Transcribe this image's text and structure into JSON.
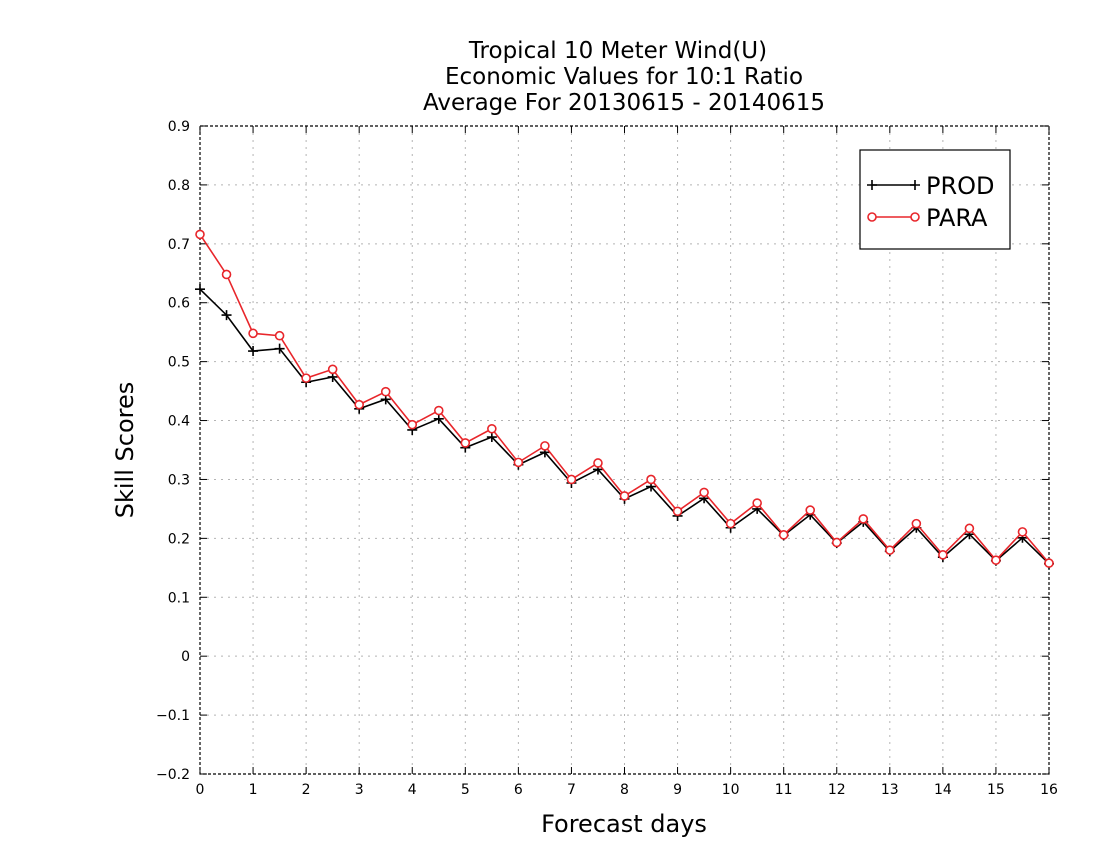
{
  "chart_data": {
    "type": "line",
    "title_lines": [
      "Tropical 10 Meter Wind(U)",
      "Economic Values for 10:1 Ratio",
      "Average For 20130615 - 20140615"
    ],
    "xlabel": "Forecast days",
    "ylabel": "Skill Scores",
    "xlim": [
      0,
      16
    ],
    "ylim": [
      -0.2,
      0.9
    ],
    "x_ticks": [
      0,
      1,
      2,
      3,
      4,
      5,
      6,
      7,
      8,
      9,
      10,
      11,
      12,
      13,
      14,
      15,
      16
    ],
    "y_ticks": [
      -0.2,
      -0.1,
      0,
      0.1,
      0.2,
      0.3,
      0.4,
      0.5,
      0.6,
      0.7,
      0.8,
      0.9
    ],
    "y_tick_labels": [
      "−0.2",
      "−0.1",
      "0",
      "0.1",
      "0.2",
      "0.3",
      "0.4",
      "0.5",
      "0.6",
      "0.7",
      "0.8",
      "0.9"
    ],
    "grid": true,
    "legend_position": "top-right",
    "x": [
      0,
      0.5,
      1,
      1.5,
      2,
      2.5,
      3,
      3.5,
      4,
      4.5,
      5,
      5.5,
      6,
      6.5,
      7,
      7.5,
      8,
      8.5,
      9,
      9.5,
      10,
      10.5,
      11,
      11.5,
      12,
      12.5,
      13,
      13.5,
      14,
      14.5,
      15,
      15.5,
      16
    ],
    "series": [
      {
        "name": "PROD",
        "color": "#000000",
        "marker": "plus",
        "values": [
          0.623,
          0.579,
          0.518,
          0.522,
          0.465,
          0.474,
          0.42,
          0.436,
          0.384,
          0.403,
          0.354,
          0.372,
          0.325,
          0.346,
          0.294,
          0.317,
          0.267,
          0.288,
          0.238,
          0.268,
          0.218,
          0.25,
          0.205,
          0.24,
          0.192,
          0.228,
          0.178,
          0.218,
          0.168,
          0.207,
          0.162,
          0.201,
          0.157
        ]
      },
      {
        "name": "PARA",
        "color": "#e8262b",
        "marker": "circle",
        "values": [
          0.716,
          0.648,
          0.548,
          0.544,
          0.472,
          0.487,
          0.427,
          0.449,
          0.393,
          0.417,
          0.362,
          0.386,
          0.329,
          0.357,
          0.3,
          0.328,
          0.272,
          0.3,
          0.246,
          0.278,
          0.225,
          0.26,
          0.206,
          0.248,
          0.193,
          0.233,
          0.18,
          0.225,
          0.172,
          0.217,
          0.163,
          0.211,
          0.158
        ]
      }
    ]
  }
}
